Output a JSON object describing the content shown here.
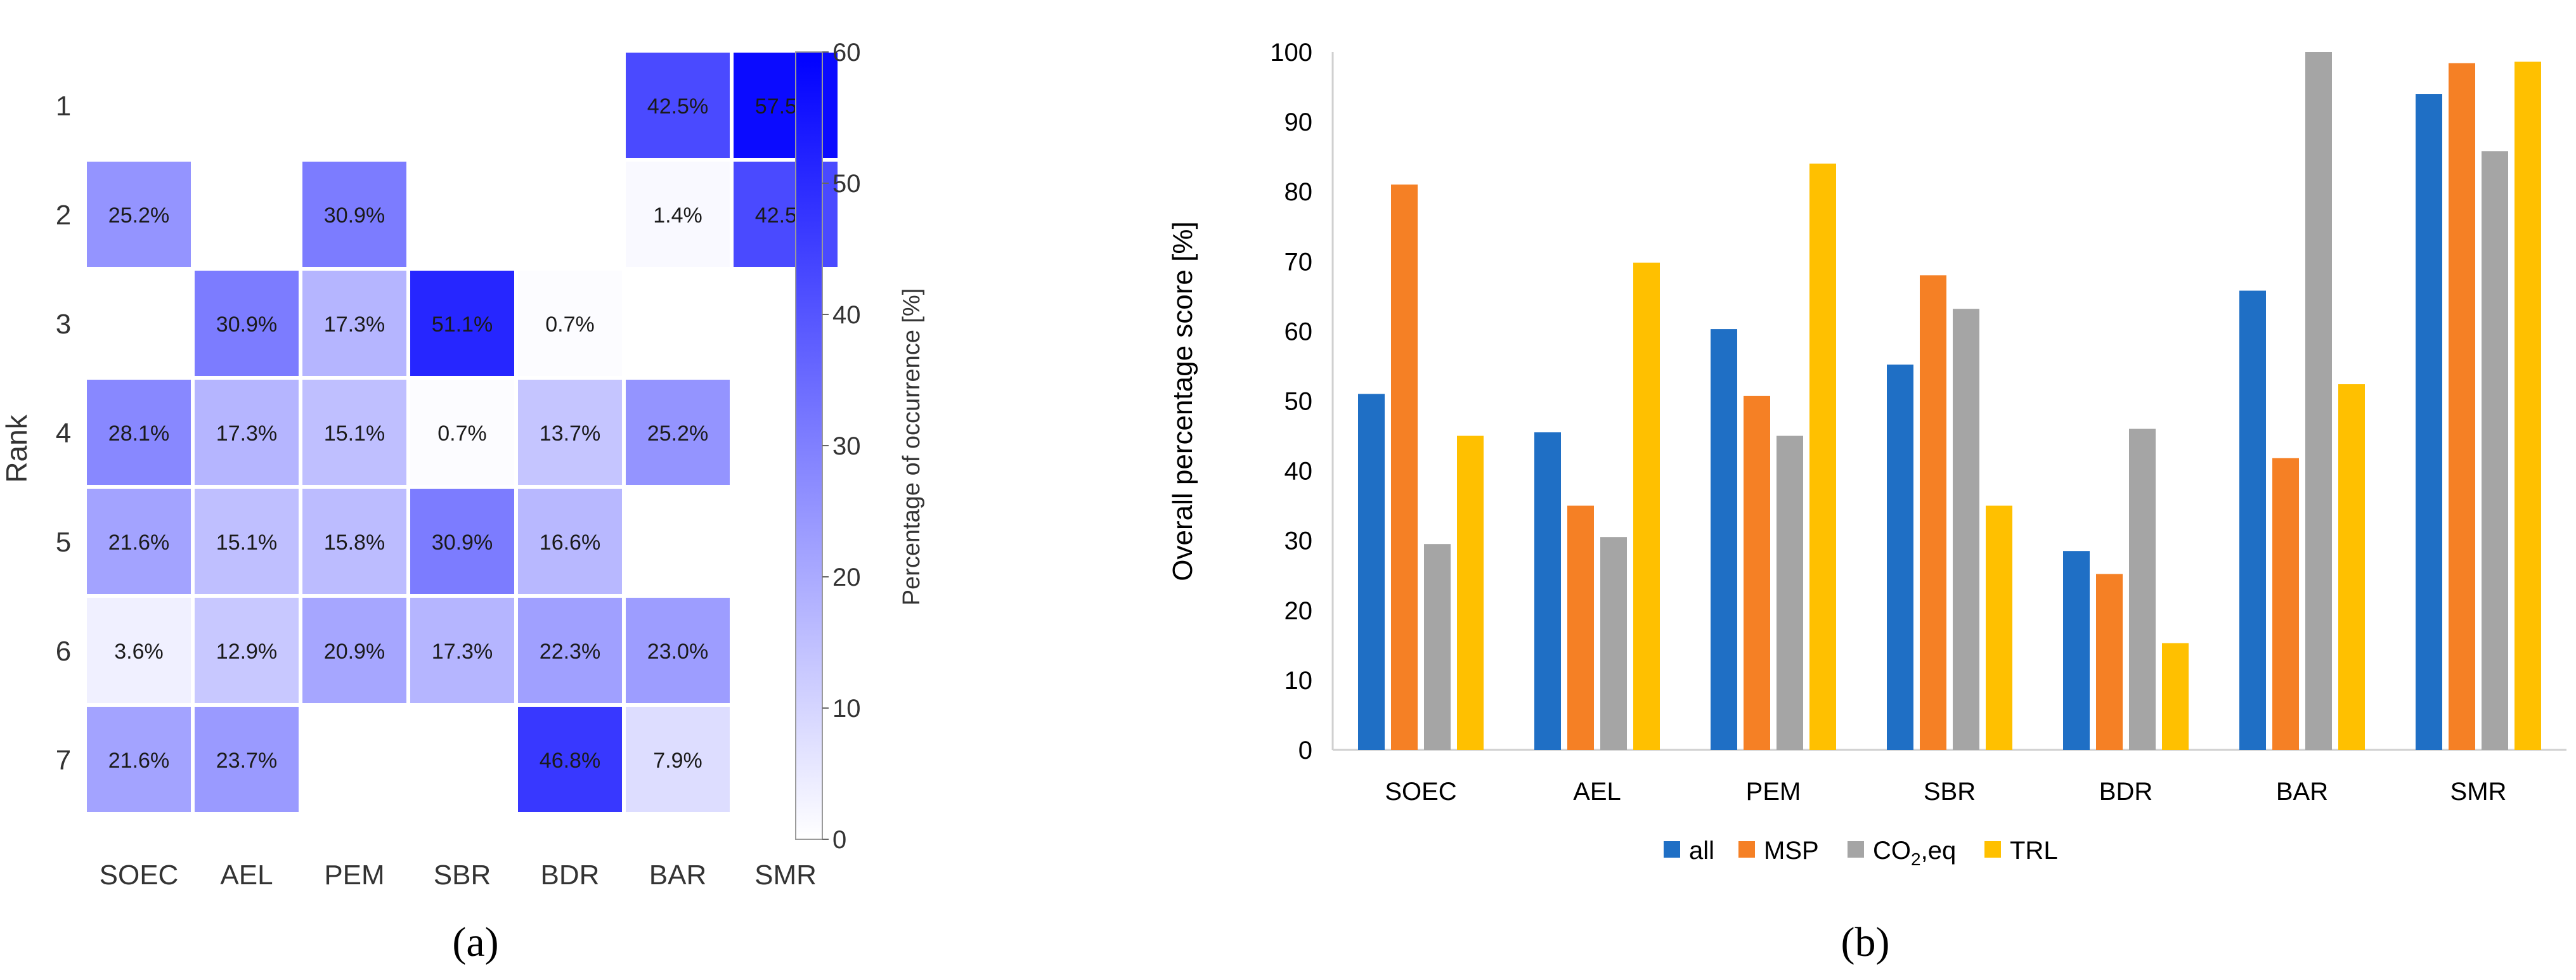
{
  "chart_data": [
    {
      "type": "heatmap",
      "panel_label": "(a)",
      "ylabel": "Rank",
      "colorbar_label": "Percentage of occurrence [%]",
      "colorbar_range": [
        0,
        60
      ],
      "colorbar_ticks": [
        "0",
        "10",
        "20",
        "30",
        "40",
        "50",
        "60"
      ],
      "color_low": "#ffffff",
      "color_high": "#0000ff",
      "categories": [
        "SOEC",
        "AEL",
        "PEM",
        "SBR",
        "BDR",
        "BAR",
        "SMR"
      ],
      "ranks": [
        "1",
        "2",
        "3",
        "4",
        "5",
        "6",
        "7"
      ],
      "values": [
        [
          null,
          null,
          null,
          null,
          null,
          42.5,
          57.5
        ],
        [
          25.2,
          null,
          30.9,
          null,
          null,
          1.4,
          42.5
        ],
        [
          null,
          30.9,
          17.3,
          51.1,
          0.7,
          null,
          null
        ],
        [
          28.1,
          17.3,
          15.1,
          0.7,
          13.7,
          25.2,
          null
        ],
        [
          21.6,
          15.1,
          15.8,
          30.9,
          16.6,
          null,
          null
        ],
        [
          3.6,
          12.9,
          20.9,
          17.3,
          22.3,
          23.0,
          null
        ],
        [
          21.6,
          23.7,
          null,
          null,
          46.8,
          7.9,
          null
        ]
      ],
      "labels": [
        [
          null,
          null,
          null,
          null,
          null,
          "42.5%",
          "57.5%"
        ],
        [
          "25.2%",
          null,
          "30.9%",
          null,
          null,
          "1.4%",
          "42.5%"
        ],
        [
          null,
          "30.9%",
          "17.3%",
          "51.1%",
          "0.7%",
          null,
          null
        ],
        [
          "28.1%",
          "17.3%",
          "15.1%",
          "0.7%",
          "13.7%",
          "25.2%",
          null
        ],
        [
          "21.6%",
          "15.1%",
          "15.8%",
          "30.9%",
          "16.6%",
          null,
          null
        ],
        [
          "3.6%",
          "12.9%",
          "20.9%",
          "17.3%",
          "22.3%",
          "23.0%",
          null
        ],
        [
          "21.6%",
          "23.7%",
          null,
          null,
          "46.8%",
          "7.9%",
          null
        ]
      ]
    },
    {
      "type": "bar",
      "panel_label": "(b)",
      "ylabel": "Overall percentage score [%]",
      "ylim": [
        0,
        100
      ],
      "yticks": [
        "0",
        "10",
        "20",
        "30",
        "40",
        "50",
        "60",
        "70",
        "80",
        "90",
        "100"
      ],
      "categories": [
        "SOEC",
        "AEL",
        "PEM",
        "SBR",
        "BDR",
        "BAR",
        "SMR"
      ],
      "series": [
        {
          "name": "all",
          "color": "#1f6fc5",
          "values": [
            51,
            45.5,
            60.3,
            55.2,
            28.5,
            65.8,
            94
          ]
        },
        {
          "name": "MSP",
          "color": "#f58025",
          "values": [
            81,
            35,
            50.7,
            68,
            25.2,
            41.8,
            98.4
          ]
        },
        {
          "name": "CO2,eq",
          "color": "#a5a5a5",
          "values": [
            29.5,
            30.5,
            45,
            63.2,
            46,
            100,
            85.8
          ]
        },
        {
          "name": "TRL",
          "color": "#ffc000",
          "values": [
            45,
            69.8,
            84,
            35,
            15.3,
            52.4,
            98.6
          ]
        }
      ],
      "legend": [
        {
          "label_main": "all",
          "label_sub": "",
          "label_tail": ""
        },
        {
          "label_main": "MSP",
          "label_sub": "",
          "label_tail": ""
        },
        {
          "label_main": "CO",
          "label_sub": "2",
          "label_tail": ",eq"
        },
        {
          "label_main": "TRL",
          "label_sub": "",
          "label_tail": ""
        }
      ],
      "legend_position": "bottom"
    }
  ]
}
